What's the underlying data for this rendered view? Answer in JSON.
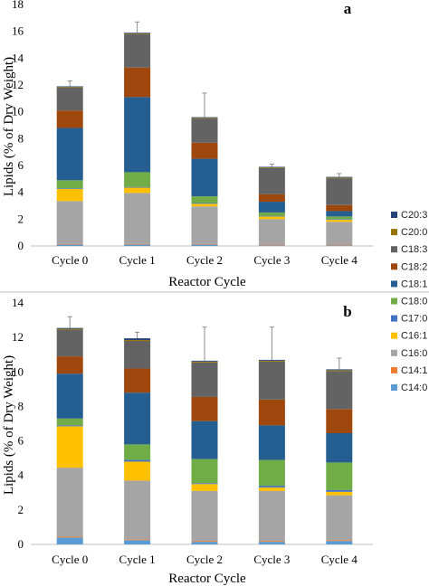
{
  "chart_data": [
    {
      "type": "bar",
      "stacked": true,
      "panel_label": "a",
      "categories": [
        "Cycle 0",
        "Cycle 1",
        "Cycle 2",
        "Cycle 3",
        "Cycle 4"
      ],
      "xlabel": "Reactor Cycle",
      "ylabel": "Lipids (% of Dry Weight)",
      "ylim": [
        0,
        18
      ],
      "yticks": [
        "0",
        "2",
        "4",
        "6",
        "8",
        "10",
        "12",
        "14",
        "16",
        "18"
      ],
      "series": [
        {
          "name": "C14:0",
          "color": "#5B9BD5",
          "values": [
            0.1,
            0.1,
            0.1,
            0.05,
            0.05
          ]
        },
        {
          "name": "C14:1",
          "color": "#ED7D31",
          "values": [
            0.05,
            0.05,
            0.05,
            0.05,
            0.05
          ]
        },
        {
          "name": "C16:0",
          "color": "#A5A5A5",
          "values": [
            3.2,
            3.8,
            2.8,
            1.9,
            1.7
          ]
        },
        {
          "name": "C16:1",
          "color": "#FFC000",
          "values": [
            0.9,
            0.4,
            0.2,
            0.2,
            0.15
          ]
        },
        {
          "name": "C17:0",
          "color": "#4472C4",
          "values": [
            0.05,
            0.05,
            0.05,
            0.05,
            0.05
          ]
        },
        {
          "name": "C18:0",
          "color": "#70AD47",
          "values": [
            0.6,
            1.1,
            0.5,
            0.25,
            0.2
          ]
        },
        {
          "name": "C18:1",
          "color": "#255E91",
          "values": [
            3.9,
            5.6,
            2.8,
            0.8,
            0.4
          ]
        },
        {
          "name": "C18:2",
          "color": "#9E480E",
          "values": [
            1.3,
            2.2,
            1.2,
            0.55,
            0.45
          ]
        },
        {
          "name": "C18:3",
          "color": "#636363",
          "values": [
            1.7,
            2.5,
            1.8,
            1.95,
            2.0
          ]
        },
        {
          "name": "C20:0",
          "color": "#997300",
          "values": [
            0.05,
            0.05,
            0.05,
            0.05,
            0.05
          ]
        },
        {
          "name": "C20:3",
          "color": "#264478",
          "values": [
            0.05,
            0.05,
            0.05,
            0.05,
            0.05
          ]
        }
      ],
      "error_upper": [
        12.3,
        16.7,
        11.4,
        6.1,
        5.4
      ]
    },
    {
      "type": "bar",
      "stacked": true,
      "panel_label": "b",
      "categories": [
        "Cycle 0",
        "Cycle 1",
        "Cycle 2",
        "Cycle 3",
        "Cycle 4"
      ],
      "xlabel": "Reactor Cycle",
      "ylabel": "Lipids (% of Dry Weight)",
      "ylim": [
        0,
        14
      ],
      "yticks": [
        "0",
        "2",
        "4",
        "6",
        "8",
        "10",
        "12",
        "14"
      ],
      "series": [
        {
          "name": "C14:0",
          "color": "#5B9BD5",
          "values": [
            0.4,
            0.25,
            0.15,
            0.15,
            0.2
          ]
        },
        {
          "name": "C14:1",
          "color": "#ED7D31",
          "values": [
            0.05,
            0.05,
            0.05,
            0.05,
            0.05
          ]
        },
        {
          "name": "C16:0",
          "color": "#A5A5A5",
          "values": [
            4.0,
            3.4,
            2.9,
            2.9,
            2.6
          ]
        },
        {
          "name": "C16:1",
          "color": "#FFC000",
          "values": [
            2.4,
            1.1,
            0.4,
            0.2,
            0.2
          ]
        },
        {
          "name": "C17:0",
          "color": "#4472C4",
          "values": [
            0.05,
            0.1,
            0.05,
            0.1,
            0.1
          ]
        },
        {
          "name": "C18:0",
          "color": "#70AD47",
          "values": [
            0.4,
            0.9,
            1.4,
            1.5,
            1.6
          ]
        },
        {
          "name": "C18:1",
          "color": "#255E91",
          "values": [
            2.6,
            3.0,
            2.2,
            2.0,
            1.7
          ]
        },
        {
          "name": "C18:2",
          "color": "#9E480E",
          "values": [
            1.0,
            1.4,
            1.4,
            1.5,
            1.4
          ]
        },
        {
          "name": "C18:3",
          "color": "#636363",
          "values": [
            1.55,
            1.6,
            2.0,
            2.2,
            2.2
          ]
        },
        {
          "name": "C20:0",
          "color": "#997300",
          "values": [
            0.05,
            0.05,
            0.05,
            0.05,
            0.05
          ]
        },
        {
          "name": "C20:3",
          "color": "#264478",
          "values": [
            0.05,
            0.1,
            0.05,
            0.05,
            0.05
          ]
        }
      ],
      "error_upper": [
        13.2,
        12.3,
        12.6,
        12.6,
        10.8
      ]
    }
  ],
  "legend": {
    "placement": "right",
    "entries": [
      {
        "name": "C20:3",
        "color": "#264478"
      },
      {
        "name": "C20:0",
        "color": "#997300"
      },
      {
        "name": "C18:3",
        "color": "#636363"
      },
      {
        "name": "C18:2",
        "color": "#9E480E"
      },
      {
        "name": "C18:1",
        "color": "#255E91"
      },
      {
        "name": "C18:0",
        "color": "#70AD47"
      },
      {
        "name": "C17:0",
        "color": "#4472C4"
      },
      {
        "name": "C16:1",
        "color": "#FFC000"
      },
      {
        "name": "C16:0",
        "color": "#A5A5A5"
      },
      {
        "name": "C14:1",
        "color": "#ED7D31"
      },
      {
        "name": "C14:0",
        "color": "#5B9BD5"
      }
    ]
  }
}
